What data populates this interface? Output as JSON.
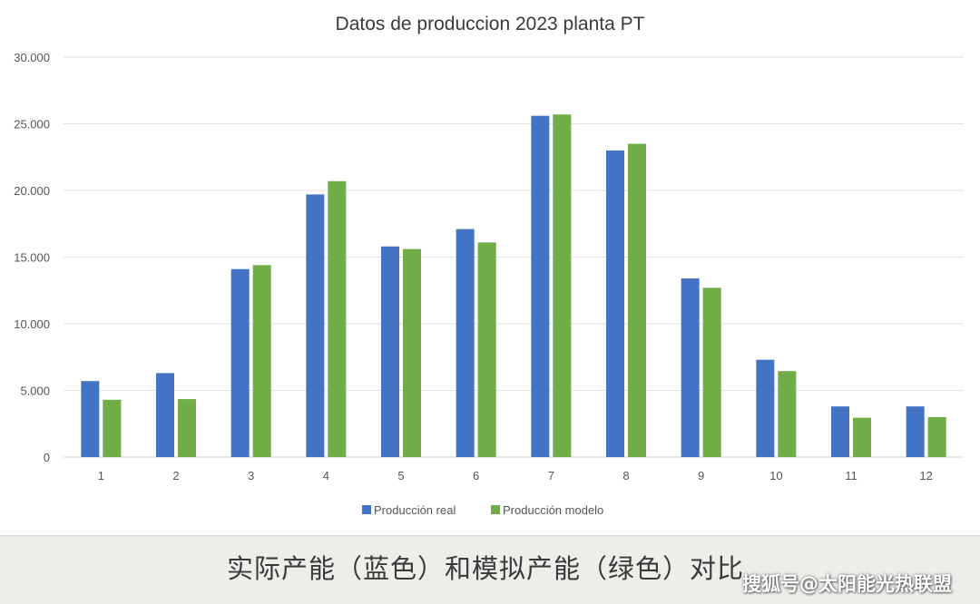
{
  "chart_data": {
    "type": "bar",
    "title": "Datos de produccion 2023 planta PT",
    "categories": [
      "1",
      "2",
      "3",
      "4",
      "5",
      "6",
      "7",
      "8",
      "9",
      "10",
      "11",
      "12"
    ],
    "series": [
      {
        "name": "Producción real",
        "color": "#4472c4",
        "values": [
          5700,
          6300,
          14100,
          19700,
          15800,
          17100,
          25600,
          23000,
          13400,
          7300,
          3800,
          3800
        ]
      },
      {
        "name": "Producción modelo",
        "color": "#70ad47",
        "values": [
          4300,
          4350,
          14400,
          20700,
          15600,
          16100,
          25700,
          23500,
          12700,
          6450,
          2950,
          3000
        ]
      }
    ],
    "ylim": [
      0,
      30000
    ],
    "yticks": [
      0,
      5000,
      10000,
      15000,
      20000,
      25000,
      30000
    ],
    "ytick_labels": [
      "0",
      "5.000",
      "10.000",
      "15.000",
      "20.000",
      "25.000",
      "30.000"
    ],
    "xlabel": "",
    "ylabel": "",
    "grid": true,
    "legend_position": "bottom"
  },
  "caption": "实际产能（蓝色）和模拟产能（绿色）对比",
  "watermark": "搜狐号@太阳能光热联盟"
}
